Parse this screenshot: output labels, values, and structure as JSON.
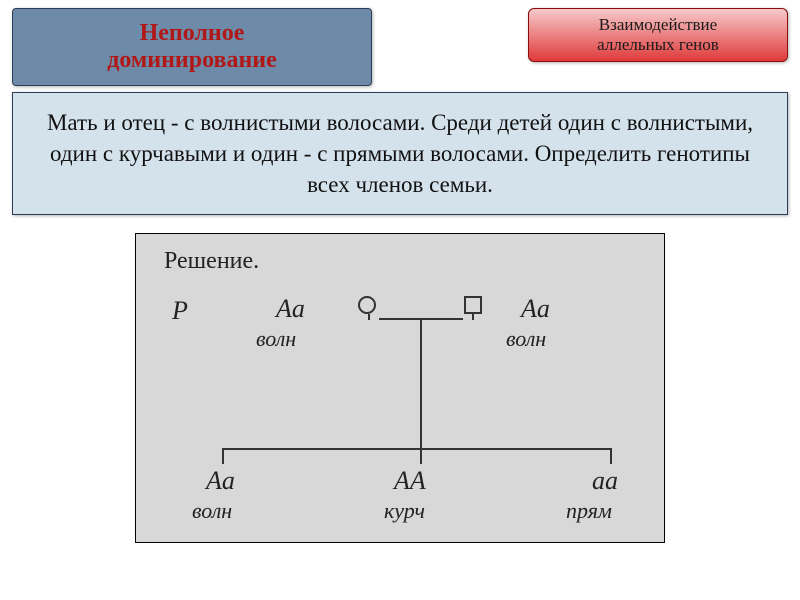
{
  "header": {
    "title_line1": "Неполное",
    "title_line2": "доминирование",
    "title_box": {
      "bg": "#6d8ba8",
      "border": "#2c3d57",
      "text_color": "#b01818",
      "font_size": 24
    },
    "label_line1": "Взаимодействие",
    "label_line2": "аллельных генов",
    "label_box": {
      "bg_top": "#f6c9ca",
      "bg_bottom": "#e03a3a",
      "border": "#8a0c0c",
      "text_color": "#1a1a1a",
      "font_size": 17
    }
  },
  "problem": {
    "text": "Мать и отец - с волнистыми волосами. Среди детей один с волнистыми, один с курчавыми и один - с прямыми волосами. Определить генотипы всех членов семьи.",
    "bg": "#d4e2ec",
    "border": "#2c3d57",
    "text_color": "#111111",
    "font_size": 23
  },
  "solution": {
    "type": "pedigree-diagram",
    "bg": "#d8d8d8",
    "stroke_color": "#333333",
    "text_color": "#222222",
    "title": "Решение.",
    "p_symbol": "P",
    "parents": {
      "mother": {
        "genotype": "Aa",
        "phenotype": "волн",
        "symbol": "circle"
      },
      "father": {
        "genotype": "Aa",
        "phenotype": "волн",
        "symbol": "square"
      }
    },
    "children": [
      {
        "genotype": "Aa",
        "phenotype": "волн"
      },
      {
        "genotype": "AA",
        "phenotype": "курч"
      },
      {
        "genotype": "aa",
        "phenotype": "прям"
      }
    ],
    "font_sizes": {
      "title": 24,
      "genotype": 26,
      "phenotype": 22
    }
  }
}
